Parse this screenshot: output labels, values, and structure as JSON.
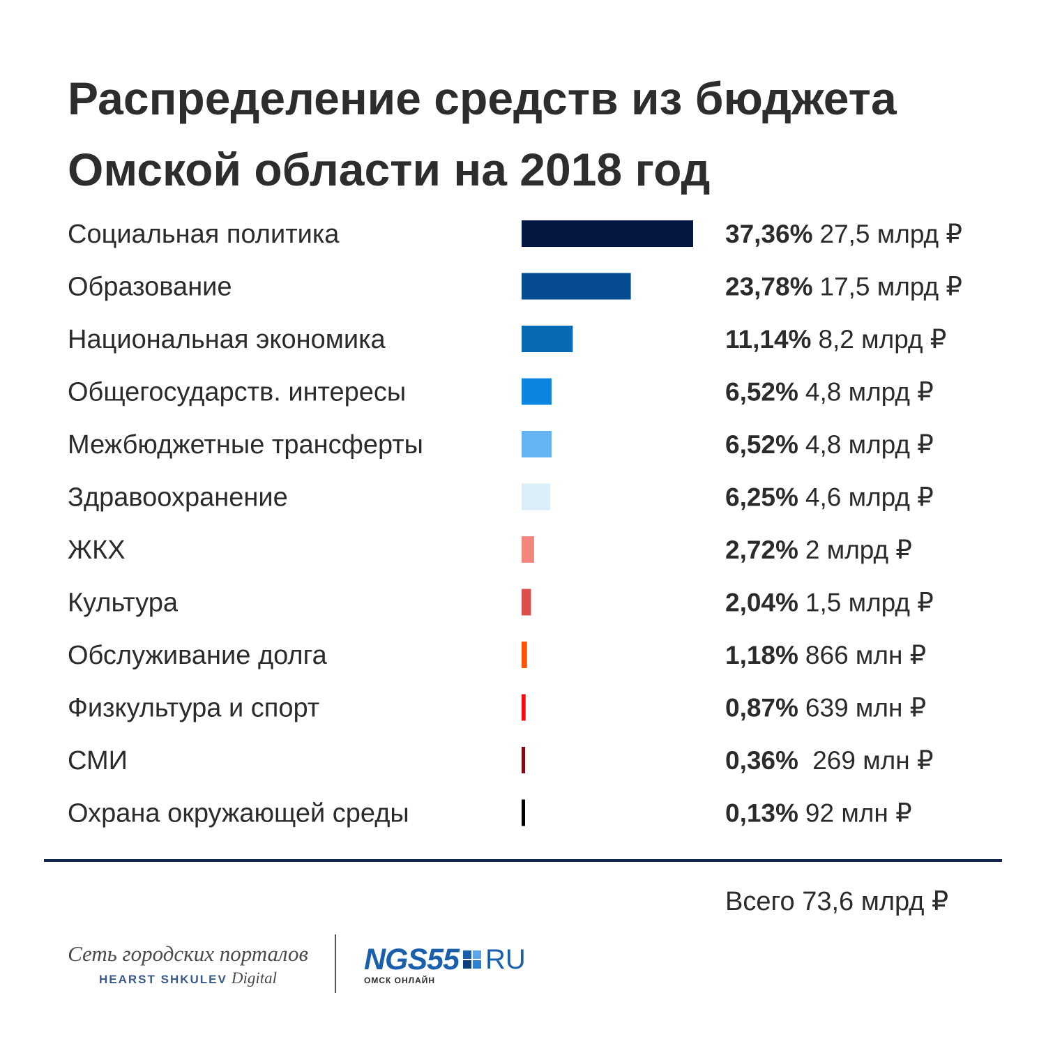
{
  "title": {
    "line1": "Распределение средств из бюджета",
    "line2": "Омской области на 2018 год"
  },
  "chart_data": {
    "type": "bar",
    "orientation": "horizontal",
    "title": "Распределение средств из бюджета Омской области на 2018 год",
    "categories": [
      "Социальная политика",
      "Образование",
      "Национальная экономика",
      "Общегосударств. интересы",
      "Межбюджетные трансферты",
      "Здравоохранение",
      "ЖКХ",
      "Культура",
      "Обслуживание долга",
      "Физкультура и спорт",
      "СМИ",
      "Охрана окружающей среды"
    ],
    "values": [
      37.36,
      23.78,
      11.14,
      6.52,
      6.52,
      6.25,
      2.72,
      2.04,
      1.18,
      0.87,
      0.36,
      0.13
    ],
    "percent_labels": [
      "37,36%",
      "23,78%",
      "11,14%",
      "6,52%",
      "6,52%",
      "6,25%",
      "2,72%",
      "2,04%",
      "1,18%",
      "0,87%",
      "0,36%",
      "0,13%"
    ],
    "amount_labels": [
      "27,5 млрд ₽",
      "17,5 млрд ₽",
      "8,2 млрд ₽",
      "4,8 млрд ₽",
      "4,8 млрд ₽",
      "4,6 млрд ₽",
      "2 млрд ₽",
      "1,5 млрд ₽",
      "866 млн ₽",
      "639 млн ₽",
      " 269 млн ₽",
      "92 млн ₽"
    ],
    "colors": [
      "#041841",
      "#044c8f",
      "#066bb3",
      "#0c84e0",
      "#64b3f2",
      "#dcedfa",
      "#f4877b",
      "#dd4e4c",
      "#fd5507",
      "#f40811",
      "#820914",
      "#000000"
    ],
    "xlim": [
      0,
      37.36
    ],
    "grid": false,
    "legend": "none"
  },
  "total": "Всего 73,6 млрд ₽",
  "branding": {
    "portal_script": "Сеть городских порталов",
    "portal_caps": "HEARST SHKULEV",
    "portal_digital": "Digital",
    "logo_text": "NGS55",
    "logo_suffix": "RU",
    "logo_sub": "ОМСК ОНЛАЙН",
    "logo_color": "#1a5fab"
  }
}
